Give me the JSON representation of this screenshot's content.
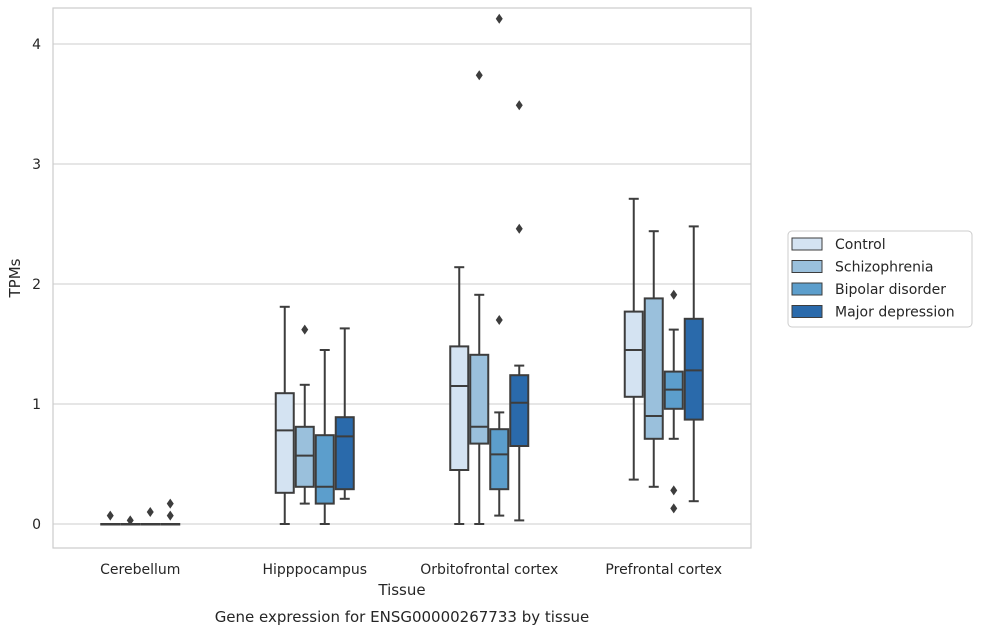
{
  "chart_data": {
    "type": "box",
    "xlabel": "Tissue",
    "ylabel": "TPMs",
    "caption": "Gene expression for ENSG00000267733 by tissue",
    "ylim": [
      -0.2,
      4.3
    ],
    "yticks": [
      0,
      1,
      2,
      3,
      4
    ],
    "grid": true,
    "legend_position": "right",
    "categories": [
      "Cerebellum",
      "Hipppocampus",
      "Orbitofrontal cortex",
      "Prefrontal cortex"
    ],
    "series": [
      {
        "name": "Control",
        "color": "#d4e3f2",
        "boxes": [
          {
            "q1": 0,
            "median": 0,
            "q3": 0,
            "whislo": 0,
            "whishi": 0,
            "fliers": [
              0.07
            ]
          },
          {
            "q1": 0.26,
            "median": 0.78,
            "q3": 1.09,
            "whislo": 0.0,
            "whishi": 1.81,
            "fliers": []
          },
          {
            "q1": 0.45,
            "median": 1.15,
            "q3": 1.48,
            "whislo": 0.0,
            "whishi": 2.14,
            "fliers": []
          },
          {
            "q1": 1.06,
            "median": 1.45,
            "q3": 1.77,
            "whislo": 0.37,
            "whishi": 2.71,
            "fliers": []
          }
        ]
      },
      {
        "name": "Schizophrenia",
        "color": "#9ac0dc",
        "boxes": [
          {
            "q1": 0,
            "median": 0,
            "q3": 0,
            "whislo": 0,
            "whishi": 0,
            "fliers": [
              0.03
            ]
          },
          {
            "q1": 0.31,
            "median": 0.57,
            "q3": 0.81,
            "whislo": 0.17,
            "whishi": 1.16,
            "fliers": [
              1.62
            ]
          },
          {
            "q1": 0.67,
            "median": 0.81,
            "q3": 1.41,
            "whislo": 0.0,
            "whishi": 1.91,
            "fliers": [
              3.74
            ]
          },
          {
            "q1": 0.71,
            "median": 0.9,
            "q3": 1.88,
            "whislo": 0.31,
            "whishi": 2.44,
            "fliers": []
          }
        ]
      },
      {
        "name": "Bipolar disorder",
        "color": "#5c9ecc",
        "boxes": [
          {
            "q1": 0,
            "median": 0,
            "q3": 0,
            "whislo": 0,
            "whishi": 0,
            "fliers": [
              0.1
            ]
          },
          {
            "q1": 0.17,
            "median": 0.31,
            "q3": 0.74,
            "whislo": 0.0,
            "whishi": 1.45,
            "fliers": []
          },
          {
            "q1": 0.29,
            "median": 0.58,
            "q3": 0.79,
            "whislo": 0.07,
            "whishi": 0.93,
            "fliers": [
              1.7,
              4.21
            ]
          },
          {
            "q1": 0.96,
            "median": 1.12,
            "q3": 1.27,
            "whislo": 0.71,
            "whishi": 1.62,
            "fliers": [
              1.91,
              0.28,
              0.13
            ]
          }
        ]
      },
      {
        "name": "Major depression",
        "color": "#2a6aab",
        "boxes": [
          {
            "q1": 0,
            "median": 0,
            "q3": 0,
            "whislo": 0,
            "whishi": 0,
            "fliers": [
              0.07,
              0.17
            ]
          },
          {
            "q1": 0.29,
            "median": 0.73,
            "q3": 0.89,
            "whislo": 0.21,
            "whishi": 1.63,
            "fliers": []
          },
          {
            "q1": 0.65,
            "median": 1.01,
            "q3": 1.24,
            "whislo": 0.03,
            "whishi": 1.32,
            "fliers": [
              2.46,
              3.49
            ]
          },
          {
            "q1": 0.87,
            "median": 1.28,
            "q3": 1.71,
            "whislo": 0.19,
            "whishi": 2.48,
            "fliers": []
          }
        ]
      }
    ]
  }
}
